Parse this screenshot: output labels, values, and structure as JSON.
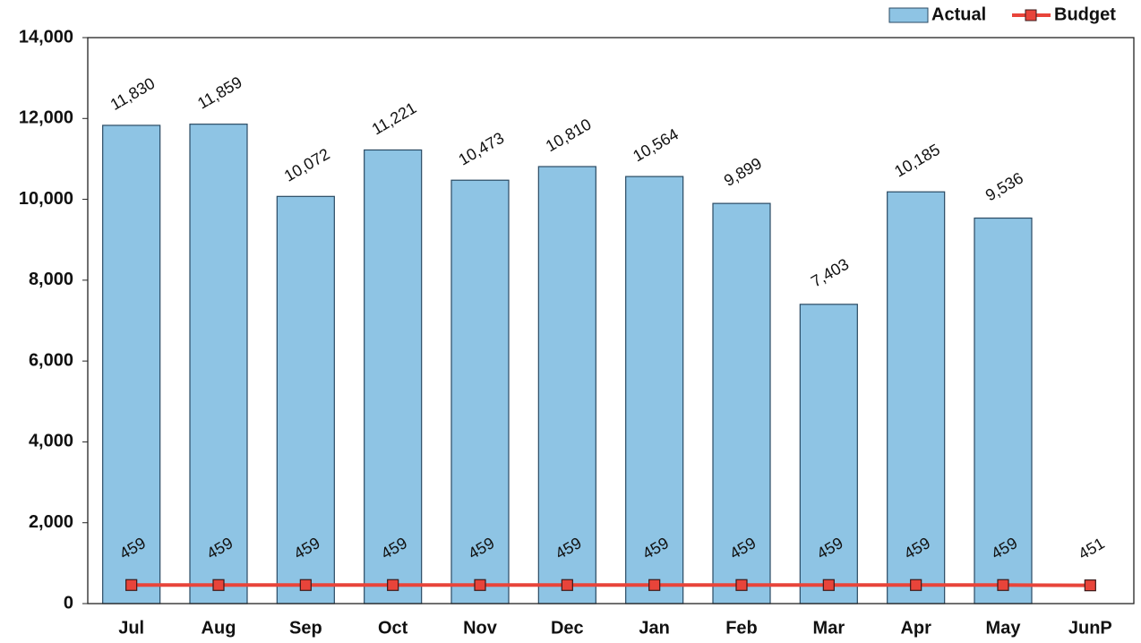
{
  "chart_data": {
    "type": "bar",
    "categories": [
      "Jul",
      "Aug",
      "Sep",
      "Oct",
      "Nov",
      "Dec",
      "Jan",
      "Feb",
      "Mar",
      "Apr",
      "May",
      "JunP"
    ],
    "series": [
      {
        "name": "Actual",
        "color": "#8ec4e4",
        "type": "bar",
        "values": [
          11830,
          11859,
          10072,
          11221,
          10473,
          10810,
          10564,
          9899,
          7403,
          10185,
          9536,
          null
        ],
        "value_labels": [
          "11,830",
          "11,859",
          "10,072",
          "11,221",
          "10,473",
          "10,810",
          "10,564",
          "9,899",
          "7,403",
          "10,185",
          "9,536",
          null
        ]
      },
      {
        "name": "Budget",
        "color": "#e8443a",
        "type": "line",
        "values": [
          459,
          459,
          459,
          459,
          459,
          459,
          459,
          459,
          459,
          459,
          459,
          451
        ]
      }
    ],
    "ylim": [
      0,
      14000
    ],
    "yticks": [
      0,
      {
        "value": 2000,
        "label": "2,000"
      },
      {
        "value": 4000,
        "label": "4,000"
      },
      {
        "value": 6000,
        "label": "6,000"
      },
      {
        "value": 8000,
        "label": "8,000"
      },
      {
        "value": 10000,
        "label": "10,000"
      },
      {
        "value": 12000,
        "label": "12,000"
      },
      {
        "value": 14000,
        "label": "14,000"
      }
    ],
    "legend": "top-right"
  }
}
